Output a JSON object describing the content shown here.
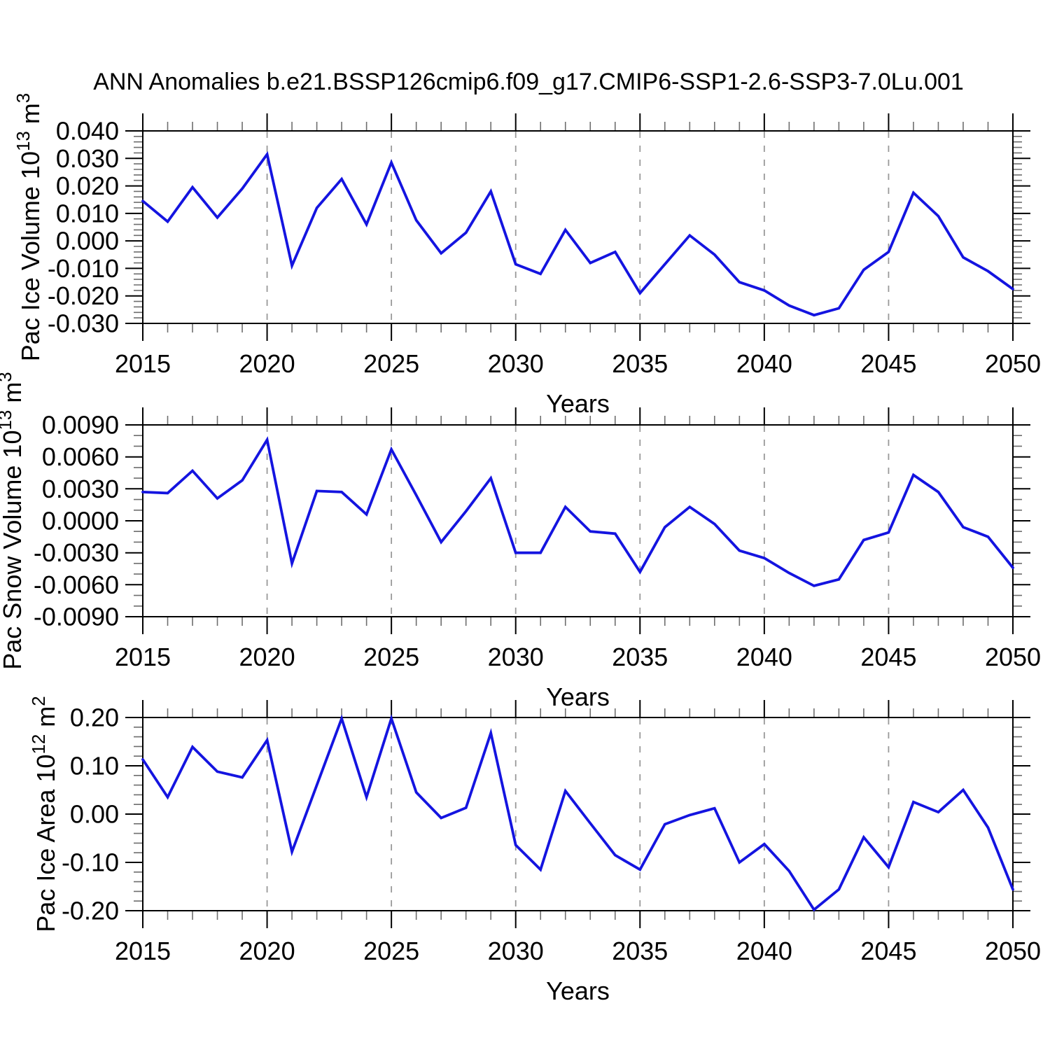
{
  "title": "ANN Anomalies b.e21.BSSP126cmip6.f09_g17.CMIP6-SSP1-2.6-SSP3-7.0Lu.001",
  "colors": {
    "line": "#1414e0",
    "axis": "#000000",
    "major_tick": "#000000",
    "minor_tick": "#6e6e6e",
    "gridline": "#999999",
    "background": "#ffffff"
  },
  "chart_data": [
    {
      "type": "line",
      "name": "pac-ice-volume",
      "ylabel": "Pac Ice Volume 10^13 m^3",
      "ylabel_parts": [
        {
          "t": "Pac Ice Volume 10"
        },
        {
          "t": "13",
          "sup": true
        },
        {
          "t": " m"
        },
        {
          "t": "3",
          "sup": true
        }
      ],
      "xlabel": "Years",
      "x": [
        2015,
        2016,
        2017,
        2018,
        2019,
        2020,
        2021,
        2022,
        2023,
        2024,
        2025,
        2026,
        2027,
        2028,
        2029,
        2030,
        2031,
        2032,
        2033,
        2034,
        2035,
        2036,
        2037,
        2038,
        2039,
        2040,
        2041,
        2042,
        2043,
        2044,
        2045,
        2046,
        2047,
        2048,
        2049,
        2050
      ],
      "values": [
        0.0145,
        0.007,
        0.0195,
        0.0085,
        0.019,
        0.0315,
        -0.009,
        0.012,
        0.0225,
        0.006,
        0.0285,
        0.0075,
        -0.0045,
        0.003,
        0.018,
        -0.0085,
        -0.012,
        0.004,
        -0.008,
        -0.004,
        -0.019,
        -0.0085,
        0.002,
        -0.005,
        -0.015,
        -0.018,
        -0.0235,
        -0.027,
        -0.0245,
        -0.0105,
        -0.004,
        0.0175,
        0.009,
        -0.006,
        -0.011,
        -0.0175
      ],
      "ylim": [
        -0.03,
        0.04
      ],
      "ymajor": 0.01,
      "yminor": 0.002,
      "ydecimals": 3,
      "xlim": [
        2015,
        2050
      ],
      "xmajor": 5,
      "xminor": 1,
      "grid_x": [
        2020,
        2025,
        2030,
        2035,
        2040,
        2045
      ],
      "grid_on": true,
      "legend": "none"
    },
    {
      "type": "line",
      "name": "pac-snow-volume",
      "ylabel": "Pac Snow Volume 10^13 m^3",
      "ylabel_parts": [
        {
          "t": "Pac Snow Volume 10"
        },
        {
          "t": "13",
          "sup": true
        },
        {
          "t": " m"
        },
        {
          "t": "3",
          "sup": true
        }
      ],
      "xlabel": "Years",
      "x": [
        2015,
        2016,
        2017,
        2018,
        2019,
        2020,
        2021,
        2022,
        2023,
        2024,
        2025,
        2026,
        2027,
        2028,
        2029,
        2030,
        2031,
        2032,
        2033,
        2034,
        2035,
        2036,
        2037,
        2038,
        2039,
        2040,
        2041,
        2042,
        2043,
        2044,
        2045,
        2046,
        2047,
        2048,
        2049,
        2050
      ],
      "values": [
        0.0027,
        0.0026,
        0.0047,
        0.0021,
        0.0038,
        0.0076,
        -0.004,
        0.0028,
        0.0027,
        0.0006,
        0.0067,
        0.0024,
        -0.002,
        0.0009,
        0.004,
        -0.003,
        -0.003,
        0.0013,
        -0.001,
        -0.0012,
        -0.0048,
        -0.0006,
        0.0013,
        -0.0003,
        -0.0028,
        -0.0035,
        -0.0049,
        -0.0061,
        -0.0055,
        -0.0018,
        -0.0011,
        0.0043,
        0.0027,
        -0.0006,
        -0.0015,
        -0.0044
      ],
      "ylim": [
        -0.009,
        0.009
      ],
      "ymajor": 0.003,
      "yminor": 0.001,
      "ydecimals": 4,
      "xlim": [
        2015,
        2050
      ],
      "xmajor": 5,
      "xminor": 1,
      "grid_x": [
        2020,
        2025,
        2030,
        2035,
        2040,
        2045
      ],
      "grid_on": true,
      "legend": "none"
    },
    {
      "type": "line",
      "name": "pac-ice-area",
      "ylabel": "Pac Ice Area 10^12 m^2",
      "ylabel_parts": [
        {
          "t": "Pac Ice Area 10"
        },
        {
          "t": "12",
          "sup": true
        },
        {
          "t": " m"
        },
        {
          "t": "2",
          "sup": true
        }
      ],
      "xlabel": "Years",
      "x": [
        2015,
        2016,
        2017,
        2018,
        2019,
        2020,
        2021,
        2022,
        2023,
        2024,
        2025,
        2026,
        2027,
        2028,
        2029,
        2030,
        2031,
        2032,
        2033,
        2034,
        2035,
        2036,
        2037,
        2038,
        2039,
        2040,
        2041,
        2042,
        2043,
        2044,
        2045,
        2046,
        2047,
        2048,
        2049,
        2050
      ],
      "values": [
        0.113,
        0.035,
        0.139,
        0.088,
        0.076,
        0.153,
        -0.078,
        0.06,
        0.198,
        0.035,
        0.198,
        0.045,
        -0.008,
        0.013,
        0.168,
        -0.064,
        -0.115,
        0.048,
        -0.019,
        -0.085,
        -0.115,
        -0.021,
        -0.002,
        0.012,
        -0.1,
        -0.062,
        -0.118,
        -0.198,
        -0.156,
        -0.048,
        -0.11,
        0.025,
        0.004,
        0.05,
        -0.028,
        -0.156
      ],
      "ylim": [
        -0.2,
        0.2
      ],
      "ymajor": 0.1,
      "yminor": 0.02,
      "ydecimals": 2,
      "xlim": [
        2015,
        2050
      ],
      "xmajor": 5,
      "xminor": 1,
      "grid_x": [
        2020,
        2025,
        2030,
        2035,
        2040,
        2045
      ],
      "grid_on": true,
      "legend": "none"
    }
  ]
}
